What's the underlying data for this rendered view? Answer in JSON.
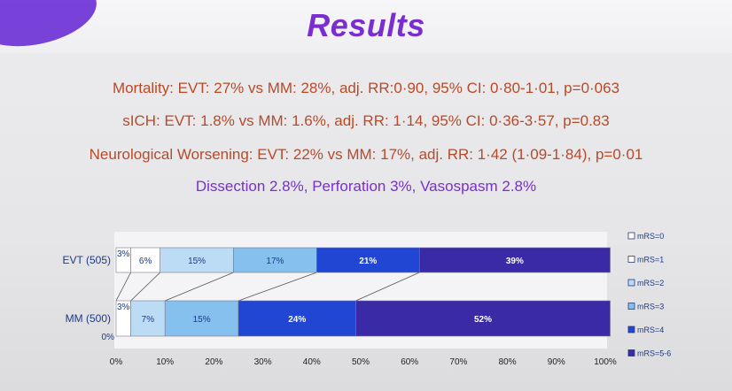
{
  "slide": {
    "title": "Results",
    "lines": [
      "Mortality: EVT: 27% vs MM: 28%, adj. RR:0·90, 95% CI: 0·80-1·01, p=0·063",
      "sICH: EVT: 1.8% vs MM: 1.6%, adj. RR: 1·14, 95% CI: 0·36-3·57, p=0.83",
      "Neurological Worsening: EVT: 22% vs MM: 17%, adj. RR: 1·42 (1·09-1·84), p=0·01",
      "Dissection 2.8%, Perforation 3%, Vasospasm 2.8%"
    ]
  },
  "chart_data": {
    "type": "bar",
    "orientation": "horizontal",
    "stacked": true,
    "normalized": true,
    "categories": [
      "EVT (505)",
      "MM (500)"
    ],
    "series": [
      {
        "name": "mRS=0",
        "values": [
          3,
          0
        ],
        "labels": [
          "3%",
          "0%"
        ],
        "color": "#ffffff"
      },
      {
        "name": "mRS=1",
        "values": [
          6,
          3
        ],
        "labels": [
          "6%",
          "3%"
        ],
        "color": "#ffffff"
      },
      {
        "name": "mRS=2",
        "values": [
          15,
          7
        ],
        "labels": [
          "15%",
          "7%"
        ],
        "color": "#bcdcf6"
      },
      {
        "name": "mRS=3",
        "values": [
          17,
          15
        ],
        "labels": [
          "17%",
          "15%"
        ],
        "color": "#86c0ee"
      },
      {
        "name": "mRS=4",
        "values": [
          21,
          24
        ],
        "labels": [
          "21%",
          "24%"
        ],
        "color": "#2146d4"
      },
      {
        "name": "mRS=5-6",
        "values": [
          39,
          52
        ],
        "labels": [
          "39%",
          "52%"
        ],
        "color": "#3a2aa6"
      }
    ],
    "x_ticks": [
      "0%",
      "10%",
      "20%",
      "30%",
      "40%",
      "50%",
      "60%",
      "70%",
      "80%",
      "90%",
      "100%"
    ],
    "xlim": [
      0,
      100
    ],
    "legend": "right",
    "grid": false
  }
}
